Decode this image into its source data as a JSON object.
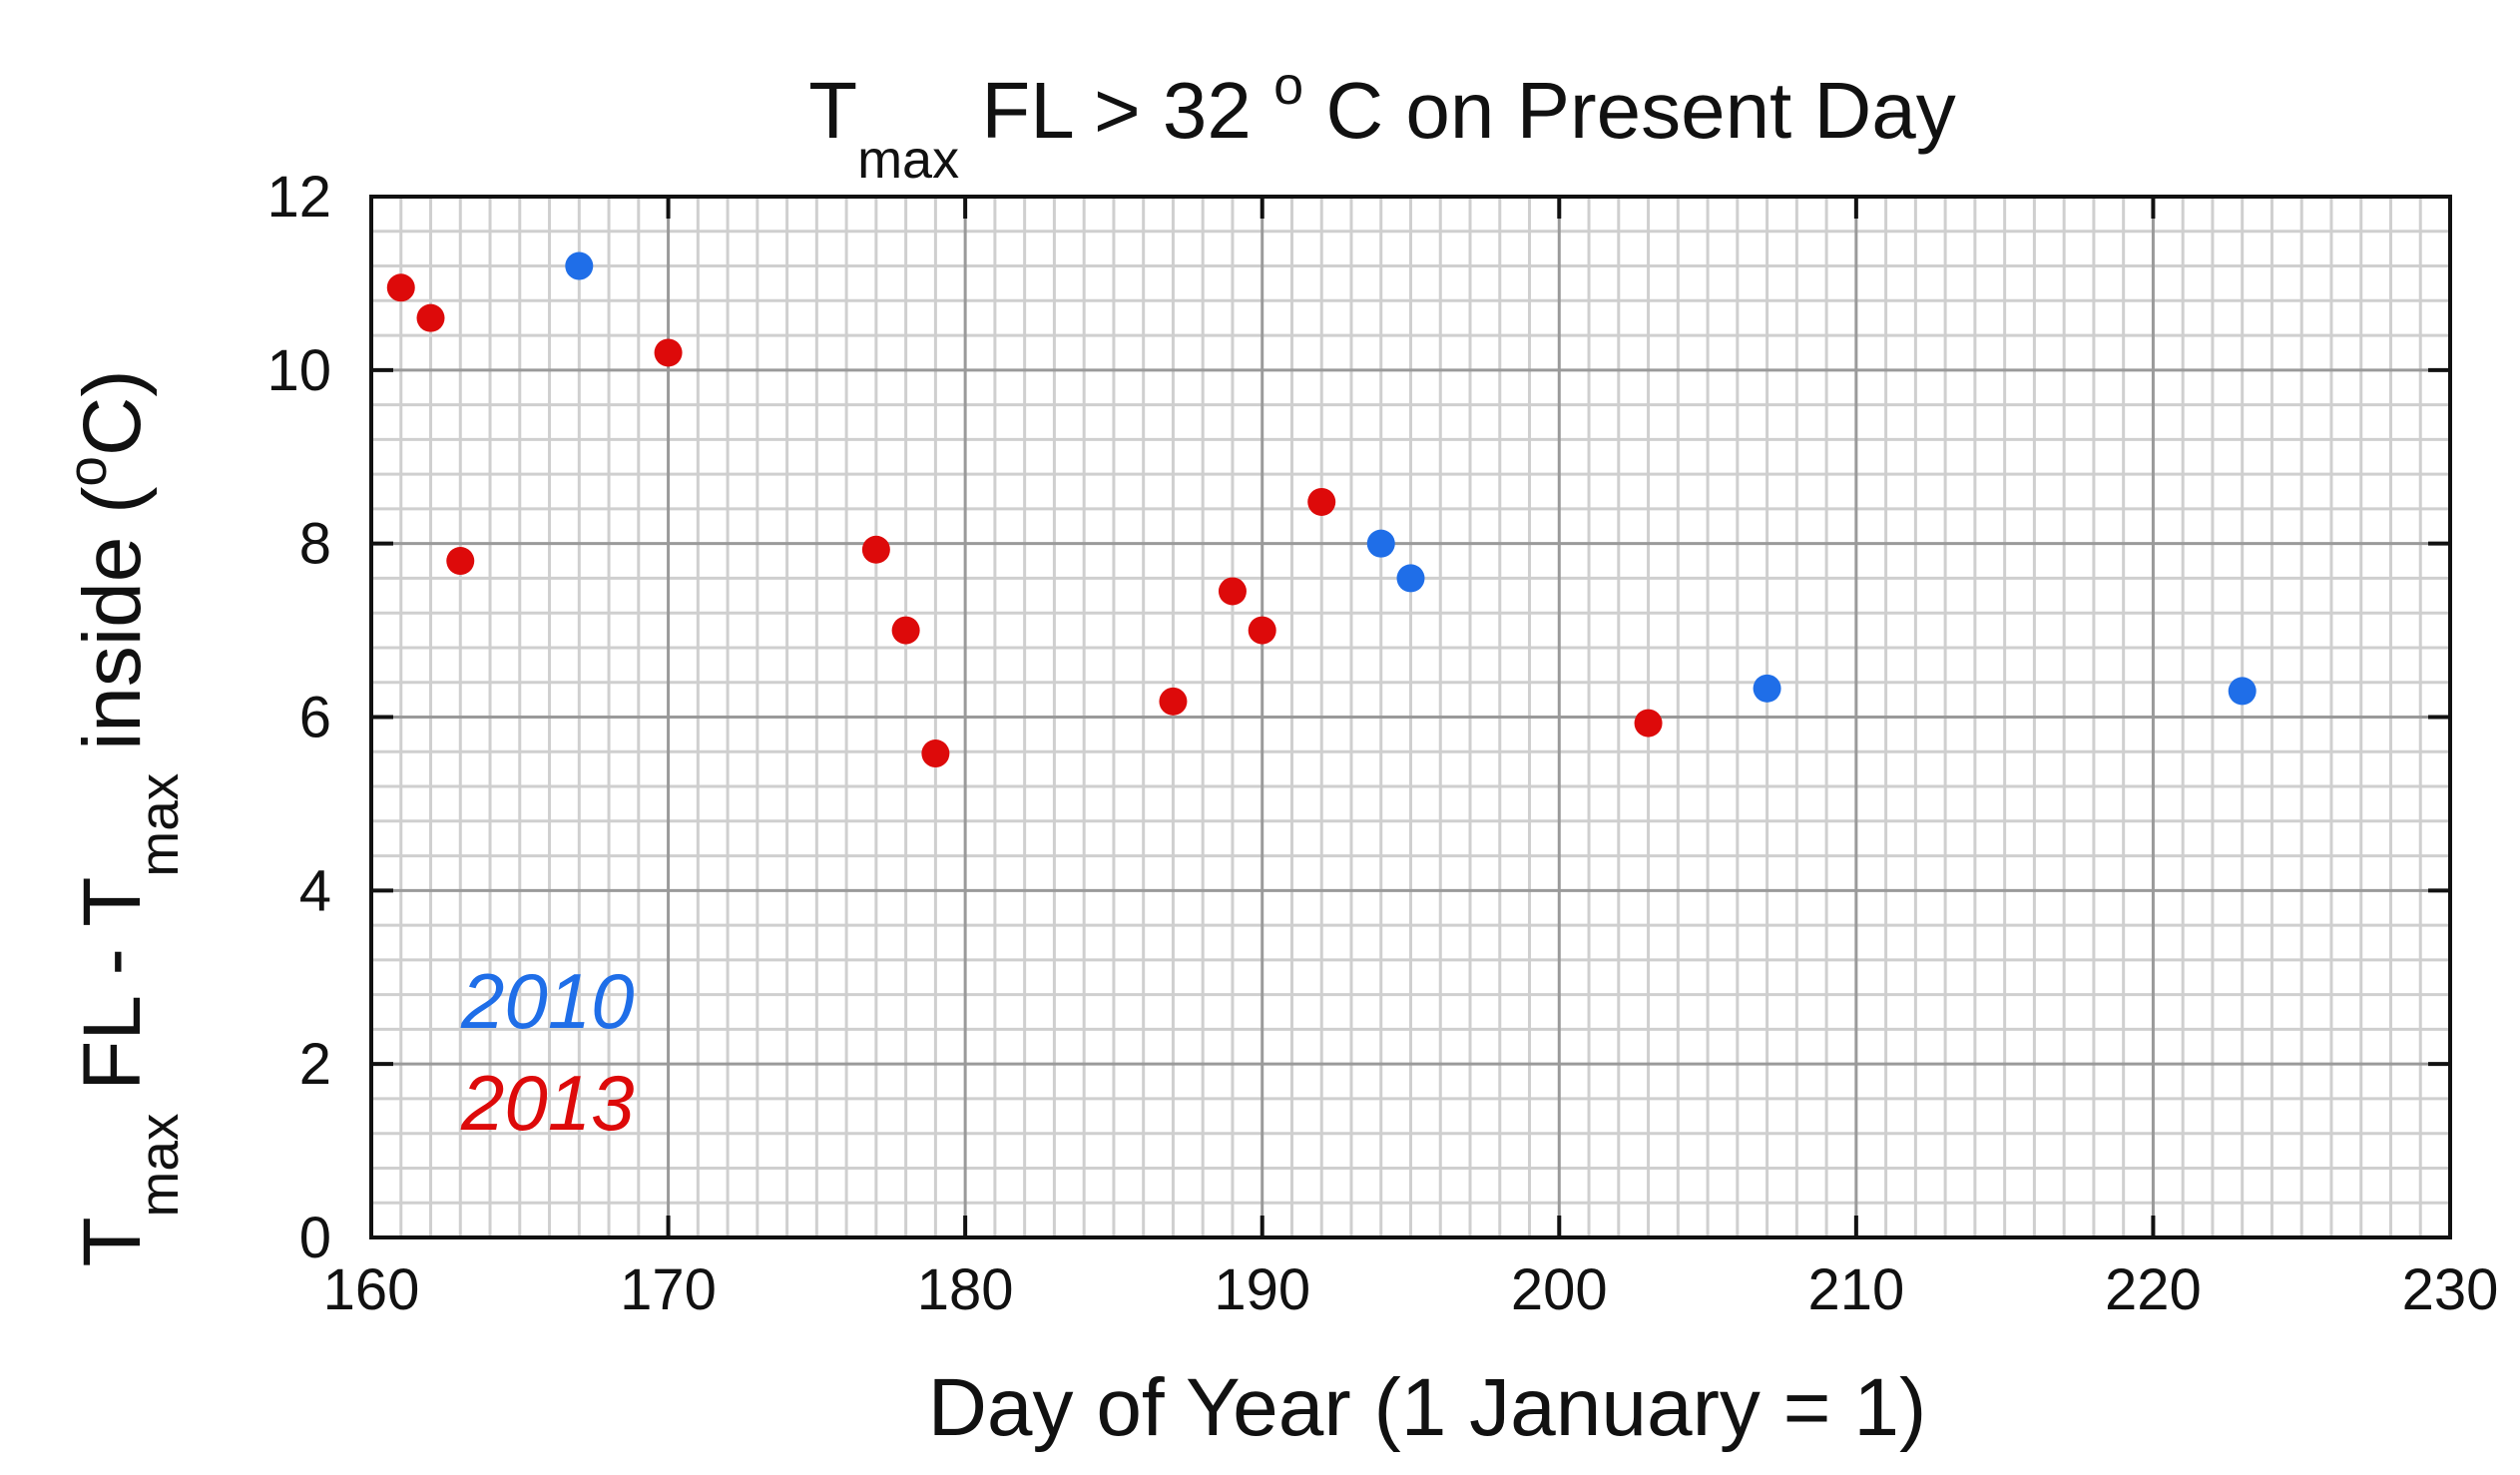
{
  "chart_data": {
    "type": "scatter",
    "title": {
      "t": "T",
      "sub": "max",
      "mid": " FL > 32 ",
      "sup": "o",
      "end": " C on Present Day"
    },
    "xlabel": "Day of Year (1 January = 1)",
    "ylabel": {
      "t1": "T",
      "sub1": "max",
      "mid": " FL - T",
      "sub2": "max",
      "mid2": " inside (",
      "sup": "o",
      "end": "C)"
    },
    "xlim": [
      160,
      230
    ],
    "ylim": [
      0,
      12
    ],
    "xticks": [
      "160",
      "170",
      "180",
      "190",
      "200",
      "210",
      "220",
      "230"
    ],
    "yticks": [
      "0",
      "2",
      "4",
      "6",
      "8",
      "10",
      "12"
    ],
    "grid": true,
    "legend_placement": "bottom-left",
    "series": [
      {
        "name": "2010",
        "color": "#1f6ee8",
        "points": [
          [
            167,
            11.2
          ],
          [
            194,
            8.0
          ],
          [
            195,
            7.6
          ],
          [
            207,
            6.33
          ],
          [
            223,
            6.3
          ]
        ]
      },
      {
        "name": "2013",
        "color": "#dd0a0a",
        "points": [
          [
            161,
            10.95
          ],
          [
            162,
            10.6
          ],
          [
            163,
            7.8
          ],
          [
            170,
            10.2
          ],
          [
            177,
            7.93
          ],
          [
            178,
            7.0
          ],
          [
            179,
            5.58
          ],
          [
            187,
            6.18
          ],
          [
            189,
            7.45
          ],
          [
            190,
            7.0
          ],
          [
            192,
            8.48
          ],
          [
            203,
            5.93
          ]
        ]
      }
    ]
  }
}
